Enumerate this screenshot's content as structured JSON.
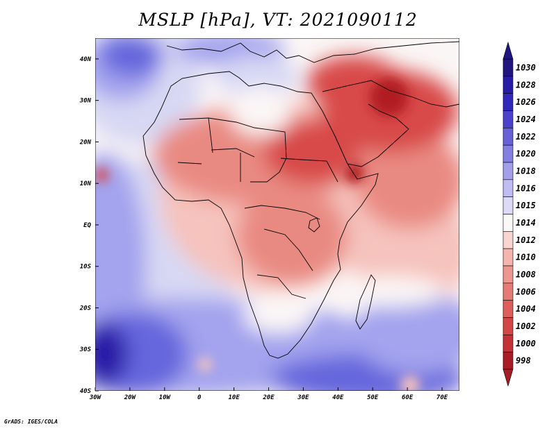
{
  "title": "MSLP [hPa], VT: 2021090112",
  "credit": "GrADS: IGES/COLA",
  "map": {
    "lon_range": [
      -30,
      75
    ],
    "lat_range": [
      -40,
      45
    ],
    "lon_ticks": [
      {
        "value": -30,
        "label": "30W"
      },
      {
        "value": -20,
        "label": "20W"
      },
      {
        "value": -10,
        "label": "10W"
      },
      {
        "value": 0,
        "label": "0"
      },
      {
        "value": 10,
        "label": "10E"
      },
      {
        "value": 20,
        "label": "20E"
      },
      {
        "value": 30,
        "label": "30E"
      },
      {
        "value": 40,
        "label": "40E"
      },
      {
        "value": 50,
        "label": "50E"
      },
      {
        "value": 60,
        "label": "60E"
      },
      {
        "value": 70,
        "label": "70E"
      }
    ],
    "lat_ticks": [
      {
        "value": 40,
        "label": "40N"
      },
      {
        "value": 30,
        "label": "30N"
      },
      {
        "value": 20,
        "label": "20N"
      },
      {
        "value": 10,
        "label": "10N"
      },
      {
        "value": 0,
        "label": "EQ"
      },
      {
        "value": -10,
        "label": "10S"
      },
      {
        "value": -20,
        "label": "20S"
      },
      {
        "value": -30,
        "label": "30S"
      },
      {
        "value": -40,
        "label": "40S"
      }
    ],
    "colors": {
      "lowest": "#b01c22",
      "low": "#d84a4a",
      "midlow": "#e98a82",
      "neutral_low": "#f6c3bd",
      "white": "#fbf6f6",
      "neutral_high": "#d8d8f4",
      "midhigh": "#a3a3ee",
      "high": "#6666dd",
      "highest": "#2a1fa8",
      "coast": "#000000"
    }
  },
  "colorbar": {
    "levels": [
      {
        "label": "1030",
        "color": "#21157f"
      },
      {
        "label": "1028",
        "color": "#281ba6"
      },
      {
        "label": "1026",
        "color": "#3227bb"
      },
      {
        "label": "1024",
        "color": "#4a42c9"
      },
      {
        "label": "1022",
        "color": "#6760d6"
      },
      {
        "label": "1020",
        "color": "#857fe2"
      },
      {
        "label": "1018",
        "color": "#a39feb"
      },
      {
        "label": "1016",
        "color": "#c0bdf2"
      },
      {
        "label": "1015",
        "color": "#dcdaf8"
      },
      {
        "label": "1014",
        "color": "#fbf8f8"
      },
      {
        "label": "1012",
        "color": "#f9d4d0"
      },
      {
        "label": "1010",
        "color": "#f3b5ae"
      },
      {
        "label": "1008",
        "color": "#ec9890"
      },
      {
        "label": "1006",
        "color": "#e47b74"
      },
      {
        "label": "1004",
        "color": "#dc5f5c"
      },
      {
        "label": "1002",
        "color": "#d34747"
      },
      {
        "label": "1000",
        "color": "#c43136"
      },
      {
        "label": "998",
        "color": "#a81d25"
      }
    ]
  }
}
